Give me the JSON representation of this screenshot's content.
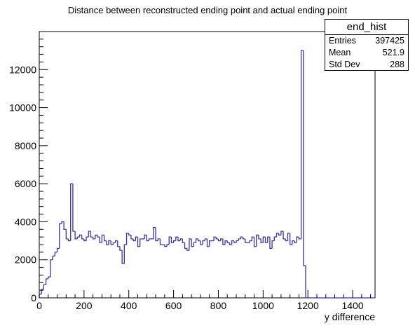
{
  "chart_data": {
    "type": "histogram",
    "title": "Distance between reconstructed ending point and actual ending point",
    "xlabel": "y difference",
    "ylabel": "",
    "xlim": [
      0,
      1500
    ],
    "ylim": [
      0,
      14000
    ],
    "x_ticks": [
      0,
      200,
      400,
      600,
      800,
      1000,
      1200,
      1400
    ],
    "y_ticks": [
      0,
      2000,
      4000,
      6000,
      8000,
      10000,
      12000
    ],
    "bin_width": 10,
    "line_color": "#3b33a1",
    "fill": "none",
    "values": [
      200,
      450,
      700,
      1000,
      1100,
      2000,
      2200,
      2400,
      2600,
      3900,
      4000,
      3600,
      3100,
      3000,
      6000,
      3500,
      3100,
      3200,
      3300,
      3100,
      3000,
      3200,
      3500,
      3200,
      3100,
      3300,
      3200,
      2900,
      3300,
      3000,
      2800,
      3000,
      2800,
      2900,
      3000,
      2700,
      2500,
      1800,
      2800,
      3400,
      3300,
      3100,
      3000,
      3200,
      2700,
      3100,
      3100,
      3300,
      3000,
      3100,
      3100,
      3700,
      3000,
      3100,
      2800,
      2800,
      2700,
      2800,
      3200,
      2900,
      3000,
      3200,
      3000,
      3100,
      2900,
      2600,
      2500,
      3100,
      2700,
      2900,
      3100,
      3000,
      2800,
      3000,
      3100,
      2700,
      3000,
      3000,
      3200,
      3100,
      3000,
      3100,
      2800,
      3000,
      2900,
      2800,
      3000,
      2900,
      3000,
      3100,
      3200,
      3100,
      2900,
      2900,
      3000,
      3200,
      2700,
      3300,
      3100,
      2900,
      3200,
      2900,
      3200,
      2600,
      3000,
      3200,
      3400,
      3300,
      3500,
      3100,
      3000,
      3400,
      2800,
      3000,
      2900,
      3200,
      3100,
      13000,
      1700,
      0
    ]
  },
  "stats_box": {
    "name": "end_hist",
    "rows": [
      {
        "label": "Entries",
        "value": "397425"
      },
      {
        "label": "Mean",
        "value": "521.9"
      },
      {
        "label": "Std Dev",
        "value": "288"
      }
    ]
  }
}
